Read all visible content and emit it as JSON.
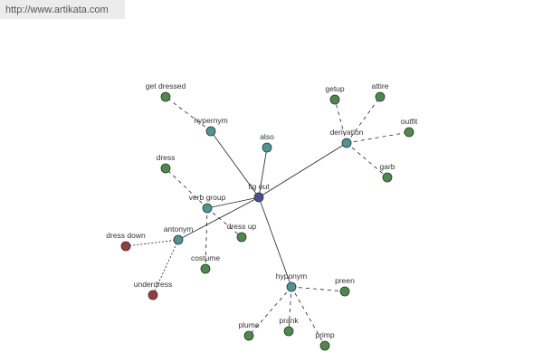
{
  "header": {
    "url": "http://www.artikata.com"
  },
  "nodes": [
    {
      "label": "fig out"
    },
    {
      "label": "hypernym"
    },
    {
      "label": "get dressed"
    },
    {
      "label": "also"
    },
    {
      "label": "derivation"
    },
    {
      "label": "getup"
    },
    {
      "label": "attire"
    },
    {
      "label": "outfit"
    },
    {
      "label": "garb"
    },
    {
      "label": "verb group"
    },
    {
      "label": "dress"
    },
    {
      "label": "dress up"
    },
    {
      "label": "costume"
    },
    {
      "label": "antonym"
    },
    {
      "label": "dress down"
    },
    {
      "label": "underdress"
    },
    {
      "label": "hyponym"
    },
    {
      "label": "preen"
    },
    {
      "label": "plume"
    },
    {
      "label": "prank"
    },
    {
      "label": "primp"
    }
  ]
}
